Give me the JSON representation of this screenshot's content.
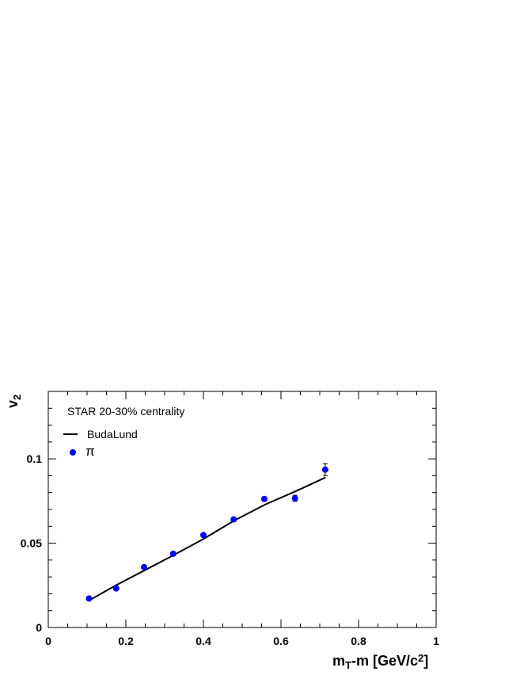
{
  "chart_data": {
    "type": "scatter",
    "annotation": "STAR 20-30% centrality",
    "xlabel": {
      "main": "m",
      "sub": "T",
      "rest": "-m [GeV/c",
      "sup": "2",
      "end": "]"
    },
    "ylabel": {
      "main": "v",
      "sub": "2"
    },
    "xlim": [
      0,
      1
    ],
    "ylim": [
      0,
      0.14
    ],
    "x_ticks": [
      0,
      0.2,
      0.4,
      0.6,
      0.8,
      1
    ],
    "x_tick_labels": [
      "0",
      "0.2",
      "0.4",
      "0.6",
      "0.8",
      "1"
    ],
    "y_ticks": [
      0,
      0.05,
      0.1
    ],
    "y_tick_labels": [
      "0",
      "0.05",
      "0.1"
    ],
    "grid": false,
    "legend_position": "top-left",
    "series": [
      {
        "name": "BudaLund",
        "kind": "line",
        "color": "#000000",
        "x": [
          0.105,
          0.17,
          0.245,
          0.32,
          0.4,
          0.48,
          0.56,
          0.64,
          0.715
        ],
        "y": [
          0.016,
          0.0245,
          0.0335,
          0.0425,
          0.0525,
          0.0635,
          0.073,
          0.081,
          0.089
        ]
      },
      {
        "name": "π",
        "kind": "points",
        "color": "#0000ff",
        "x": [
          0.105,
          0.175,
          0.247,
          0.322,
          0.4,
          0.478,
          0.557,
          0.636,
          0.714
        ],
        "y": [
          0.0172,
          0.0232,
          0.0358,
          0.0437,
          0.0548,
          0.0641,
          0.0762,
          0.0766,
          0.0936
        ],
        "err": [
          0.0008,
          0.0008,
          0.0008,
          0.0008,
          0.0009,
          0.001,
          0.0012,
          0.0018,
          0.0035
        ]
      }
    ]
  }
}
